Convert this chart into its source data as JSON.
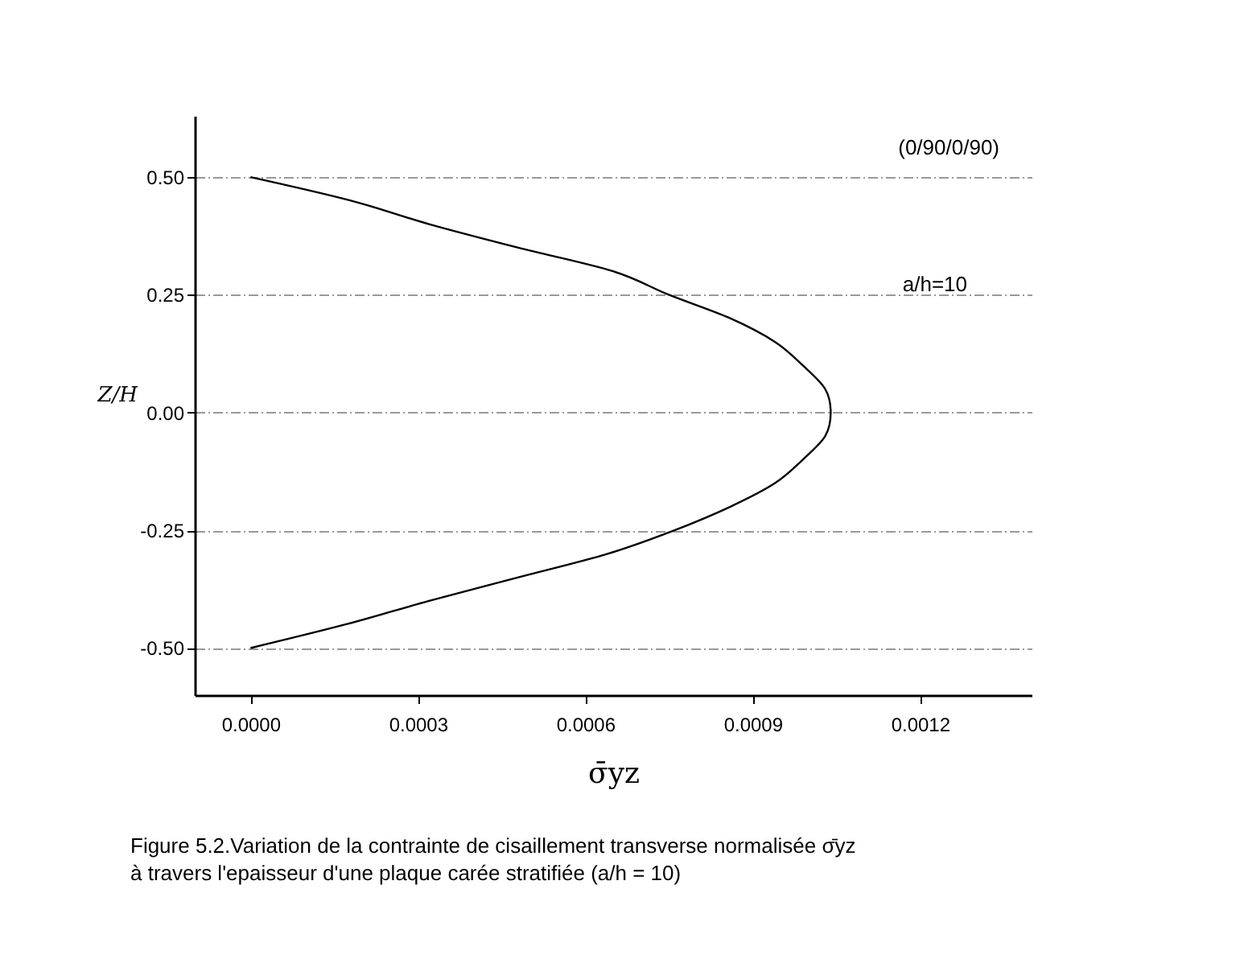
{
  "chart_data": {
    "type": "line",
    "xlabel": "σ̄yz",
    "ylabel": "Z/H",
    "annotations": [
      "(0/90/0/90)",
      "a/h=10",
      "Figure 5.2.Variation de la contrainte de cisaillement transverse normalisée  σ̄yz\nà travers l'epaisseur d'une plaque carée stratifiée  (a/h = 10)"
    ],
    "series": [
      {
        "color": "#000000",
        "x": [
          0,
          0.00018,
          0.00032,
          0.00048,
          0.00065,
          0.00075,
          0.00086,
          0.00094,
          0.00099,
          0.00103,
          0.00104,
          0.00103,
          0.00099,
          0.00094,
          0.00086,
          0.00076,
          0.00064,
          0.00048,
          0.00032,
          0.00017,
          0
        ],
        "values": [
          0.5,
          0.45,
          0.4,
          0.35,
          0.3,
          0.25,
          0.2,
          0.15,
          0.1,
          0.05,
          0,
          -0.05,
          -0.1,
          -0.15,
          -0.2,
          -0.25,
          -0.3,
          -0.35,
          -0.4,
          -0.45,
          -0.5
        ]
      }
    ],
    "xlim": [
      -0.0001,
      0.0014
    ],
    "ylim": [
      -0.6,
      0.63
    ],
    "xticks": [
      {
        "value": 0,
        "label": "0.0000"
      },
      {
        "value": 0.0003,
        "label": "0.0003"
      },
      {
        "value": 0.0006,
        "label": "0.0006"
      },
      {
        "value": 0.0009,
        "label": "0.0009"
      },
      {
        "value": 0.0012,
        "label": "0.0012"
      }
    ],
    "yticks": [
      {
        "value": -0.5,
        "label": "-0.50"
      },
      {
        "value": -0.25,
        "label": "-0.25"
      },
      {
        "value": 0,
        "label": "0.00"
      },
      {
        "value": 0.25,
        "label": "0.25"
      },
      {
        "value": 0.5,
        "label": "0.50"
      }
    ],
    "grid": "y",
    "marker": "none",
    "line_style": "solid"
  }
}
